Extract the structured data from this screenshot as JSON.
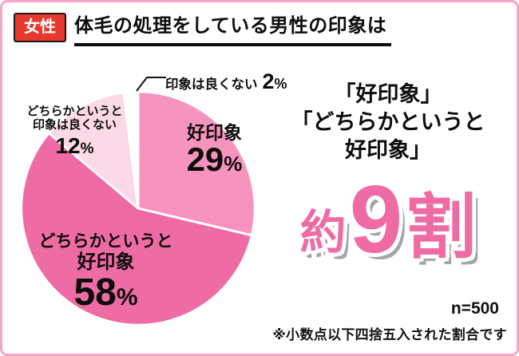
{
  "header": {
    "badge": "女性",
    "title": "体毛の処理をしている男性の印象は"
  },
  "chart_data": {
    "type": "pie",
    "title": "体毛の処理をしている男性の印象は",
    "start_angle": "top",
    "direction": "clockwise",
    "unit": "%",
    "n": 500,
    "segments": [
      {
        "label": "好印象",
        "value": 29,
        "color": "#f794bd"
      },
      {
        "label": "どちらかというと好印象",
        "value": 58,
        "color": "#ee6ba4"
      },
      {
        "label": "どちらかというと印象は良くない",
        "value": 12,
        "color": "#fbd9e7"
      },
      {
        "label": "印象は良くない",
        "value": 2,
        "color": "#ffffff"
      }
    ]
  },
  "pie_labels": {
    "good": {
      "name": "好印象",
      "value": "29",
      "unit": "%"
    },
    "somewhat_good": {
      "line1": "どちらかというと",
      "line2": "好印象",
      "value": "58",
      "unit": "%"
    },
    "somewhat_bad": {
      "line1": "どちらかというと",
      "line2": "印象は良くない",
      "value": "12",
      "unit": "%"
    },
    "bad": {
      "name": "印象は良くない",
      "value": "2",
      "unit": "%"
    }
  },
  "highlight": {
    "line1": "「好印象」",
    "line2": "「どちらかというと",
    "line3": "好印象」",
    "approx": "約",
    "number": "9",
    "unit": "割"
  },
  "footer": {
    "sample": "n=500",
    "note": "※小数点以下四捨五入された割合です"
  },
  "colors": {
    "accent": "#ee6ba4",
    "frame": "#f5a6c6",
    "badge": "#e8392f",
    "text": "#111111"
  }
}
